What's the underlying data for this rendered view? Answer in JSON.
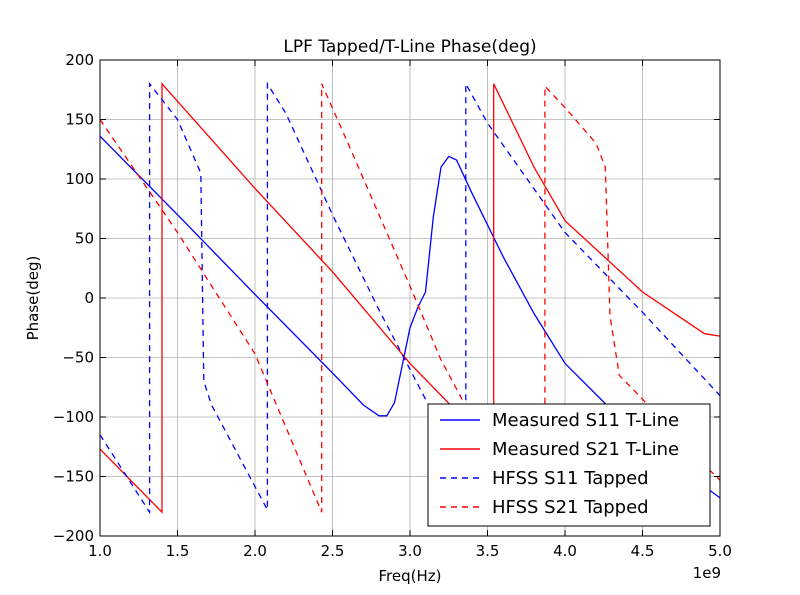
{
  "chart_data": {
    "type": "line",
    "title": "LPF Tapped/T-Line Phase(deg)",
    "xlabel": "Freq(Hz)",
    "ylabel": "Phase(deg)",
    "x_offset_text": "1e9",
    "xlim": [
      1.0,
      5.0
    ],
    "ylim": [
      -200,
      200
    ],
    "xticks": [
      "1.0",
      "1.5",
      "2.0",
      "2.5",
      "3.0",
      "3.5",
      "4.0",
      "4.5",
      "5.0"
    ],
    "yticks": [
      "−200",
      "−150",
      "−100",
      "−50",
      "0",
      "50",
      "100",
      "150",
      "200"
    ],
    "grid": true,
    "legend_position": "lower-right",
    "series": [
      {
        "name": "Measured S11 T-Line",
        "color": "#0000ff",
        "style": "solid",
        "x": [
          1.0,
          1.5,
          2.0,
          2.5,
          2.7,
          2.8,
          2.85,
          2.9,
          3.0,
          3.05,
          3.1,
          3.15,
          3.2,
          3.25,
          3.3,
          3.4,
          3.6,
          3.8,
          4.0,
          4.5,
          5.0
        ],
        "y": [
          136,
          70,
          3,
          -63,
          -90,
          -99,
          -99,
          -88,
          -25,
          -8,
          5,
          68,
          110,
          119,
          116,
          88,
          35,
          -13,
          -55,
          -120,
          -168
        ]
      },
      {
        "name": "Measured S21 T-Line",
        "color": "#ff0000",
        "style": "solid",
        "x": [
          1.0,
          1.4,
          1.4,
          2.0,
          2.5,
          3.0,
          3.5,
          3.54,
          3.54,
          3.8,
          4.0,
          4.5,
          4.9,
          5.0
        ],
        "y": [
          -127,
          -180,
          180,
          92,
          22,
          -55,
          -122,
          -128,
          180,
          110,
          65,
          5,
          -30,
          -32
        ]
      },
      {
        "name": "HFSS S11 Tapped",
        "color": "#0000ff",
        "style": "dashed",
        "x": [
          1.0,
          1.32,
          1.32,
          1.5,
          1.65,
          1.67,
          1.72,
          2.08,
          2.08,
          2.2,
          2.5,
          2.8,
          3.0,
          3.2,
          3.36,
          3.36,
          3.5,
          4.0,
          4.5,
          5.0
        ],
        "y": [
          -115,
          -180,
          180,
          150,
          105,
          -70,
          -90,
          -178,
          180,
          155,
          70,
          -10,
          -60,
          -110,
          -148,
          180,
          147,
          55,
          -12,
          -82
        ]
      },
      {
        "name": "HFSS S21 Tapped",
        "color": "#ff0000",
        "style": "dashed",
        "x": [
          1.0,
          1.5,
          2.0,
          2.43,
          2.43,
          2.6,
          2.8,
          3.0,
          3.2,
          3.5,
          3.87,
          3.87,
          4.0,
          4.2,
          4.26,
          4.29,
          4.35,
          4.5,
          4.8,
          5.0
        ],
        "y": [
          150,
          55,
          -47,
          -180,
          180,
          130,
          70,
          10,
          -52,
          -125,
          -90,
          178,
          160,
          130,
          110,
          -15,
          -65,
          -85,
          -128,
          -153
        ]
      }
    ]
  }
}
